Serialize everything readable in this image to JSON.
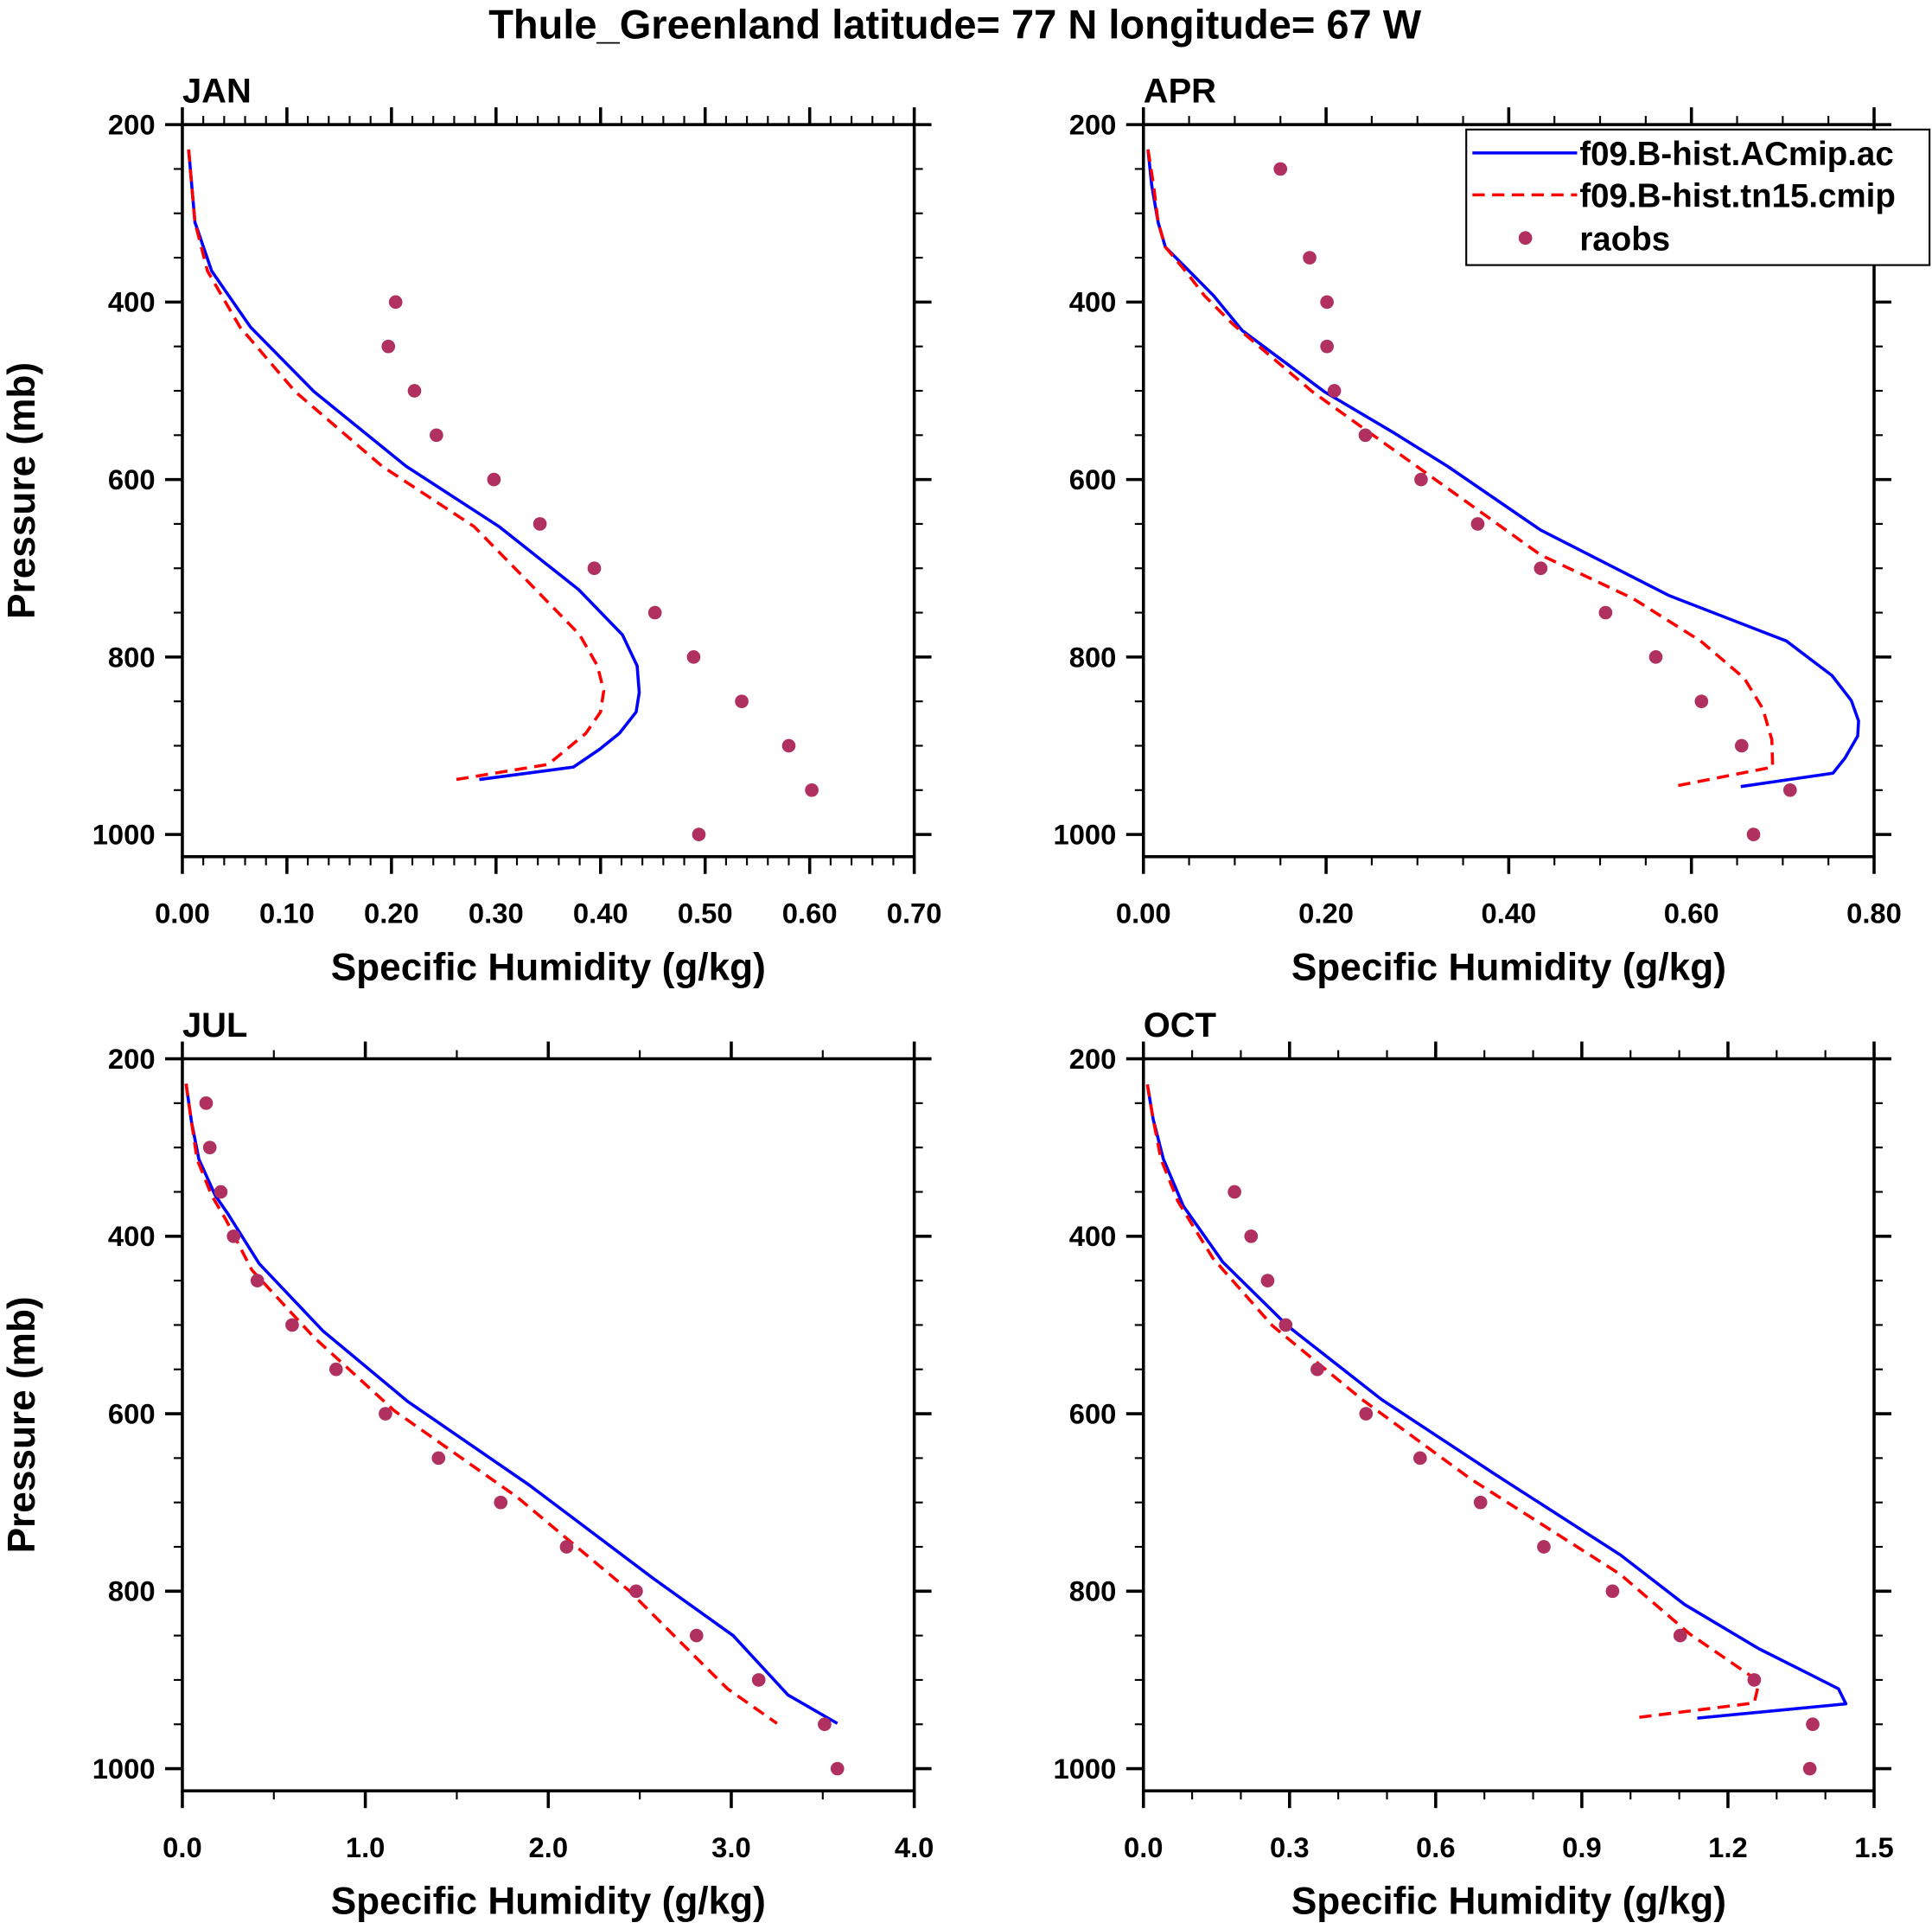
{
  "title": "Thule_Greenland  latitude= 77 N longitude= 67 W",
  "colors": {
    "model_ac": "#0000ff",
    "model_tn15": "#ff0000",
    "raobs": "#b03060"
  },
  "legend": {
    "placement": "top-right of APR panel",
    "entries": [
      "f09.B-hist.ACmip.ac",
      "f09.B-hist.tn15.cmip",
      "raobs"
    ]
  },
  "chart_data": [
    {
      "type": "line",
      "title": "JAN",
      "xlabel": "Specific Humidity (g/kg)",
      "ylabel": "Pressure (mb)",
      "xlim": [
        0,
        0.7
      ],
      "ylim": [
        1025,
        200
      ],
      "xticks": [
        0,
        0.1,
        0.2,
        0.3,
        0.4,
        0.5,
        0.6,
        0.7
      ],
      "xtick_labels": [
        "0.00",
        "0.10",
        "0.20",
        "0.30",
        "0.40",
        "0.50",
        "0.60",
        "0.70"
      ],
      "xminor": 0.02,
      "yticks": [
        200,
        400,
        600,
        800,
        1000
      ],
      "ytick_labels": [
        "200",
        "400",
        "600",
        "800",
        "1000"
      ],
      "series": [
        {
          "name": "f09.B-hist.ACmip.ac",
          "style": "solid",
          "x": [
            0.006,
            0.012,
            0.028,
            0.065,
            0.126,
            0.214,
            0.303,
            0.379,
            0.421,
            0.435,
            0.437,
            0.434,
            0.418,
            0.399,
            0.374,
            0.284
          ],
          "p": [
            228,
            310,
            365,
            428,
            501,
            585,
            653,
            724,
            775,
            810,
            840,
            862,
            886,
            904,
            924,
            938
          ]
        },
        {
          "name": "f09.B-hist.tn15.cmip",
          "style": "dashed",
          "x": [
            0.006,
            0.012,
            0.024,
            0.055,
            0.108,
            0.191,
            0.279,
            0.338,
            0.38,
            0.397,
            0.403,
            0.4,
            0.386,
            0.35,
            0.262
          ],
          "p": [
            228,
            310,
            365,
            428,
            501,
            585,
            653,
            724,
            775,
            810,
            838,
            862,
            886,
            921,
            938
          ]
        },
        {
          "name": "raobs",
          "style": "markers",
          "x": [
            0.204,
            0.197,
            0.222,
            0.243,
            0.298,
            0.342,
            0.394,
            0.452,
            0.489,
            0.535,
            0.58,
            0.602,
            0.494
          ],
          "p": [
            400,
            450,
            500,
            550,
            600,
            650,
            700,
            750,
            800,
            850,
            900,
            950,
            1000
          ]
        }
      ]
    },
    {
      "type": "line",
      "title": "APR",
      "xlabel": "Specific Humidity (g/kg)",
      "ylabel": "",
      "xlim": [
        0,
        0.8
      ],
      "ylim": [
        1025,
        200
      ],
      "xticks": [
        0,
        0.2,
        0.4,
        0.6,
        0.8
      ],
      "xtick_labels": [
        "0.00",
        "0.20",
        "0.40",
        "0.60",
        "0.80"
      ],
      "xminor": 0.05,
      "yticks": [
        200,
        400,
        600,
        800,
        1000
      ],
      "ytick_labels": [
        "200",
        "400",
        "600",
        "800",
        "1000"
      ],
      "series": [
        {
          "name": "f09.B-hist.ACmip.ac",
          "style": "solid",
          "x": [
            0.005,
            0.009,
            0.016,
            0.024,
            0.05,
            0.077,
            0.108,
            0.198,
            0.272,
            0.333,
            0.435,
            0.576,
            0.704,
            0.754,
            0.775,
            0.783,
            0.782,
            0.768,
            0.755,
            0.654
          ],
          "p": [
            228,
            268,
            310,
            338,
            365,
            393,
            432,
            501,
            546,
            585,
            657,
            731,
            782,
            821,
            849,
            872,
            889,
            914,
            931,
            946
          ]
        },
        {
          "name": "f09.B-hist.tn15.cmip",
          "style": "dashed",
          "x": [
            0.005,
            0.011,
            0.016,
            0.024,
            0.046,
            0.067,
            0.097,
            0.185,
            0.246,
            0.34,
            0.435,
            0.536,
            0.61,
            0.658,
            0.678,
            0.688,
            0.689,
            0.58
          ],
          "p": [
            228,
            268,
            310,
            338,
            365,
            393,
            424,
            501,
            546,
            615,
            685,
            734,
            782,
            824,
            858,
            893,
            924,
            946
          ]
        },
        {
          "name": "raobs",
          "style": "markers",
          "x": [
            0.15,
            0.182,
            0.201,
            0.201,
            0.209,
            0.243,
            0.304,
            0.366,
            0.435,
            0.506,
            0.561,
            0.611,
            0.655,
            0.708,
            0.668
          ],
          "p": [
            250,
            350,
            400,
            450,
            500,
            550,
            600,
            650,
            700,
            750,
            800,
            850,
            900,
            950,
            1000
          ]
        }
      ]
    },
    {
      "type": "line",
      "title": "JUL",
      "xlabel": "Specific Humidity (g/kg)",
      "ylabel": "Pressure (mb)",
      "xlim": [
        0,
        4.0
      ],
      "ylim": [
        1025,
        200
      ],
      "xticks": [
        0,
        1,
        2,
        3,
        4
      ],
      "xtick_labels": [
        "0.0",
        "1.0",
        "2.0",
        "3.0",
        "4.0"
      ],
      "xminor": 0.5,
      "yticks": [
        200,
        400,
        600,
        800,
        1000
      ],
      "ytick_labels": [
        "200",
        "400",
        "600",
        "800",
        "1000"
      ],
      "series": [
        {
          "name": "f09.B-hist.ACmip.ac",
          "style": "solid",
          "x": [
            0.02,
            0.05,
            0.09,
            0.18,
            0.25,
            0.42,
            0.77,
            1.23,
            1.9,
            2.57,
            3.01,
            3.31,
            3.58
          ],
          "p": [
            228,
            271,
            313,
            354,
            375,
            431,
            507,
            586,
            681,
            785,
            850,
            917,
            949
          ]
        },
        {
          "name": "f09.B-hist.tn15.cmip",
          "style": "dashed",
          "x": [
            0.02,
            0.05,
            0.08,
            0.16,
            0.24,
            0.38,
            0.72,
            1.16,
            1.83,
            2.44,
            2.74,
            2.98,
            3.25
          ],
          "p": [
            228,
            271,
            313,
            354,
            382,
            438,
            514,
            597,
            694,
            799,
            861,
            910,
            949
          ]
        },
        {
          "name": "raobs",
          "style": "markers",
          "x": [
            0.13,
            0.15,
            0.21,
            0.28,
            0.41,
            0.6,
            0.84,
            1.11,
            1.4,
            1.74,
            2.1,
            2.48,
            2.81,
            3.15,
            3.51,
            3.58
          ],
          "p": [
            250,
            300,
            350,
            400,
            450,
            500,
            550,
            600,
            650,
            700,
            750,
            800,
            850,
            900,
            950,
            1000
          ]
        }
      ]
    },
    {
      "type": "line",
      "title": "OCT",
      "xlabel": "Specific Humidity (g/kg)",
      "ylabel": "",
      "xlim": [
        0,
        1.5
      ],
      "ylim": [
        1025,
        200
      ],
      "xticks": [
        0,
        0.3,
        0.6,
        0.9,
        1.2,
        1.5
      ],
      "xtick_labels": [
        "0.0",
        "0.3",
        "0.6",
        "0.9",
        "1.2",
        "1.5"
      ],
      "xminor": 0.1,
      "yticks": [
        200,
        400,
        600,
        800,
        1000
      ],
      "ytick_labels": [
        "200",
        "400",
        "600",
        "800",
        "1000"
      ],
      "series": [
        {
          "name": "f09.B-hist.ACmip.ac",
          "style": "solid",
          "x": [
            0.008,
            0.02,
            0.041,
            0.082,
            0.163,
            0.296,
            0.489,
            0.724,
            0.979,
            1.111,
            1.264,
            1.366,
            1.427,
            1.442,
            1.137
          ],
          "p": [
            229,
            268,
            313,
            366,
            429,
            501,
            584,
            669,
            759,
            815,
            865,
            893,
            910,
            927,
            943
          ]
        },
        {
          "name": "f09.B-hist.tn15.cmip",
          "style": "dashed",
          "x": [
            0.008,
            0.02,
            0.036,
            0.071,
            0.143,
            0.265,
            0.449,
            0.673,
            0.979,
            1.121,
            1.254,
            1.262,
            1.254,
            1.004
          ],
          "p": [
            229,
            268,
            313,
            361,
            425,
            501,
            584,
            674,
            781,
            848,
            898,
            907,
            926,
            943
          ]
        },
        {
          "name": "raobs",
          "style": "markers",
          "x": [
            0.187,
            0.221,
            0.255,
            0.292,
            0.357,
            0.457,
            0.568,
            0.692,
            0.822,
            0.963,
            1.102,
            1.254,
            1.374,
            1.368
          ],
          "p": [
            350,
            400,
            450,
            500,
            550,
            600,
            650,
            700,
            750,
            800,
            850,
            900,
            950,
            1000
          ]
        }
      ]
    }
  ]
}
